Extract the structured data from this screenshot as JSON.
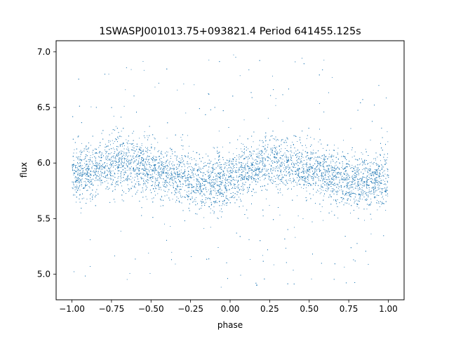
{
  "chart_data": {
    "type": "scatter",
    "title": "1SWASPJ001013.75+093821.4 Period 641455.125s",
    "xlabel": "phase",
    "ylabel": "flux",
    "xlim": [
      -1.1,
      1.1
    ],
    "ylim": [
      4.77,
      7.1
    ],
    "x_ticks": [
      -1.0,
      -0.75,
      -0.5,
      -0.25,
      0.0,
      0.25,
      0.5,
      0.75,
      1.0
    ],
    "x_tick_labels": [
      "−1.00",
      "−0.75",
      "−0.50",
      "−0.25",
      "0.00",
      "0.25",
      "0.50",
      "0.75",
      "1.00"
    ],
    "y_ticks": [
      5.0,
      5.5,
      6.0,
      6.5,
      7.0
    ],
    "y_tick_labels": [
      "5.0",
      "5.5",
      "6.0",
      "6.5",
      "7.0"
    ],
    "grid": false,
    "legend": false,
    "marker_color": "#1f77b4",
    "series": [
      {
        "phase_range": [
          -1.0,
          1.0
        ],
        "folded_period_phase": 1.0,
        "baseline_profile": {
          "phase": [
            -1.0,
            -0.9,
            -0.8,
            -0.7,
            -0.6,
            -0.5,
            -0.4,
            -0.3,
            -0.2,
            -0.1,
            0.0,
            0.1,
            0.2,
            0.3,
            0.4,
            0.5,
            0.6,
            0.7,
            0.8,
            0.9,
            1.0
          ],
          "flux": [
            5.88,
            5.92,
            5.99,
            6.01,
            5.98,
            5.93,
            5.9,
            5.86,
            5.81,
            5.84,
            5.86,
            5.92,
            5.99,
            6.01,
            5.98,
            5.93,
            5.9,
            5.86,
            5.82,
            5.84,
            5.86
          ]
        },
        "core_scatter": 0.12,
        "outlier_range": [
          4.88,
          6.98
        ]
      }
    ]
  }
}
